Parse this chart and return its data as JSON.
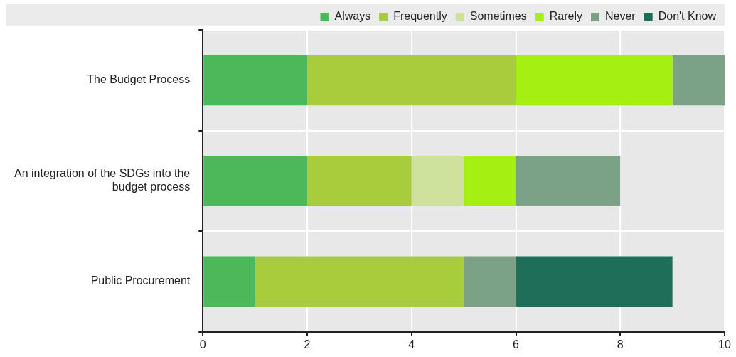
{
  "chart_data": {
    "type": "bar",
    "orientation": "horizontal",
    "stacked": true,
    "categories": [
      "The Budget Process",
      "An integration of the SDGs into the budget process",
      "Public Procurement"
    ],
    "series": [
      {
        "name": "Always",
        "color": "#4cb85a",
        "values": [
          2,
          2,
          1
        ]
      },
      {
        "name": "Frequently",
        "color": "#a8cc3c",
        "values": [
          4,
          2,
          4
        ]
      },
      {
        "name": "Sometimes",
        "color": "#cfe29c",
        "values": [
          0,
          1,
          0
        ]
      },
      {
        "name": "Rarely",
        "color": "#a5ef12",
        "values": [
          3,
          1,
          0
        ]
      },
      {
        "name": "Never",
        "color": "#7ba187",
        "values": [
          1,
          2,
          1
        ]
      },
      {
        "name": "Don't Know",
        "color": "#1f6e5a",
        "values": [
          0,
          0,
          3
        ]
      }
    ],
    "xlim": [
      0,
      10
    ],
    "xticks": [
      0,
      2,
      4,
      6,
      8,
      10
    ],
    "grid": true,
    "legend": "top right"
  }
}
